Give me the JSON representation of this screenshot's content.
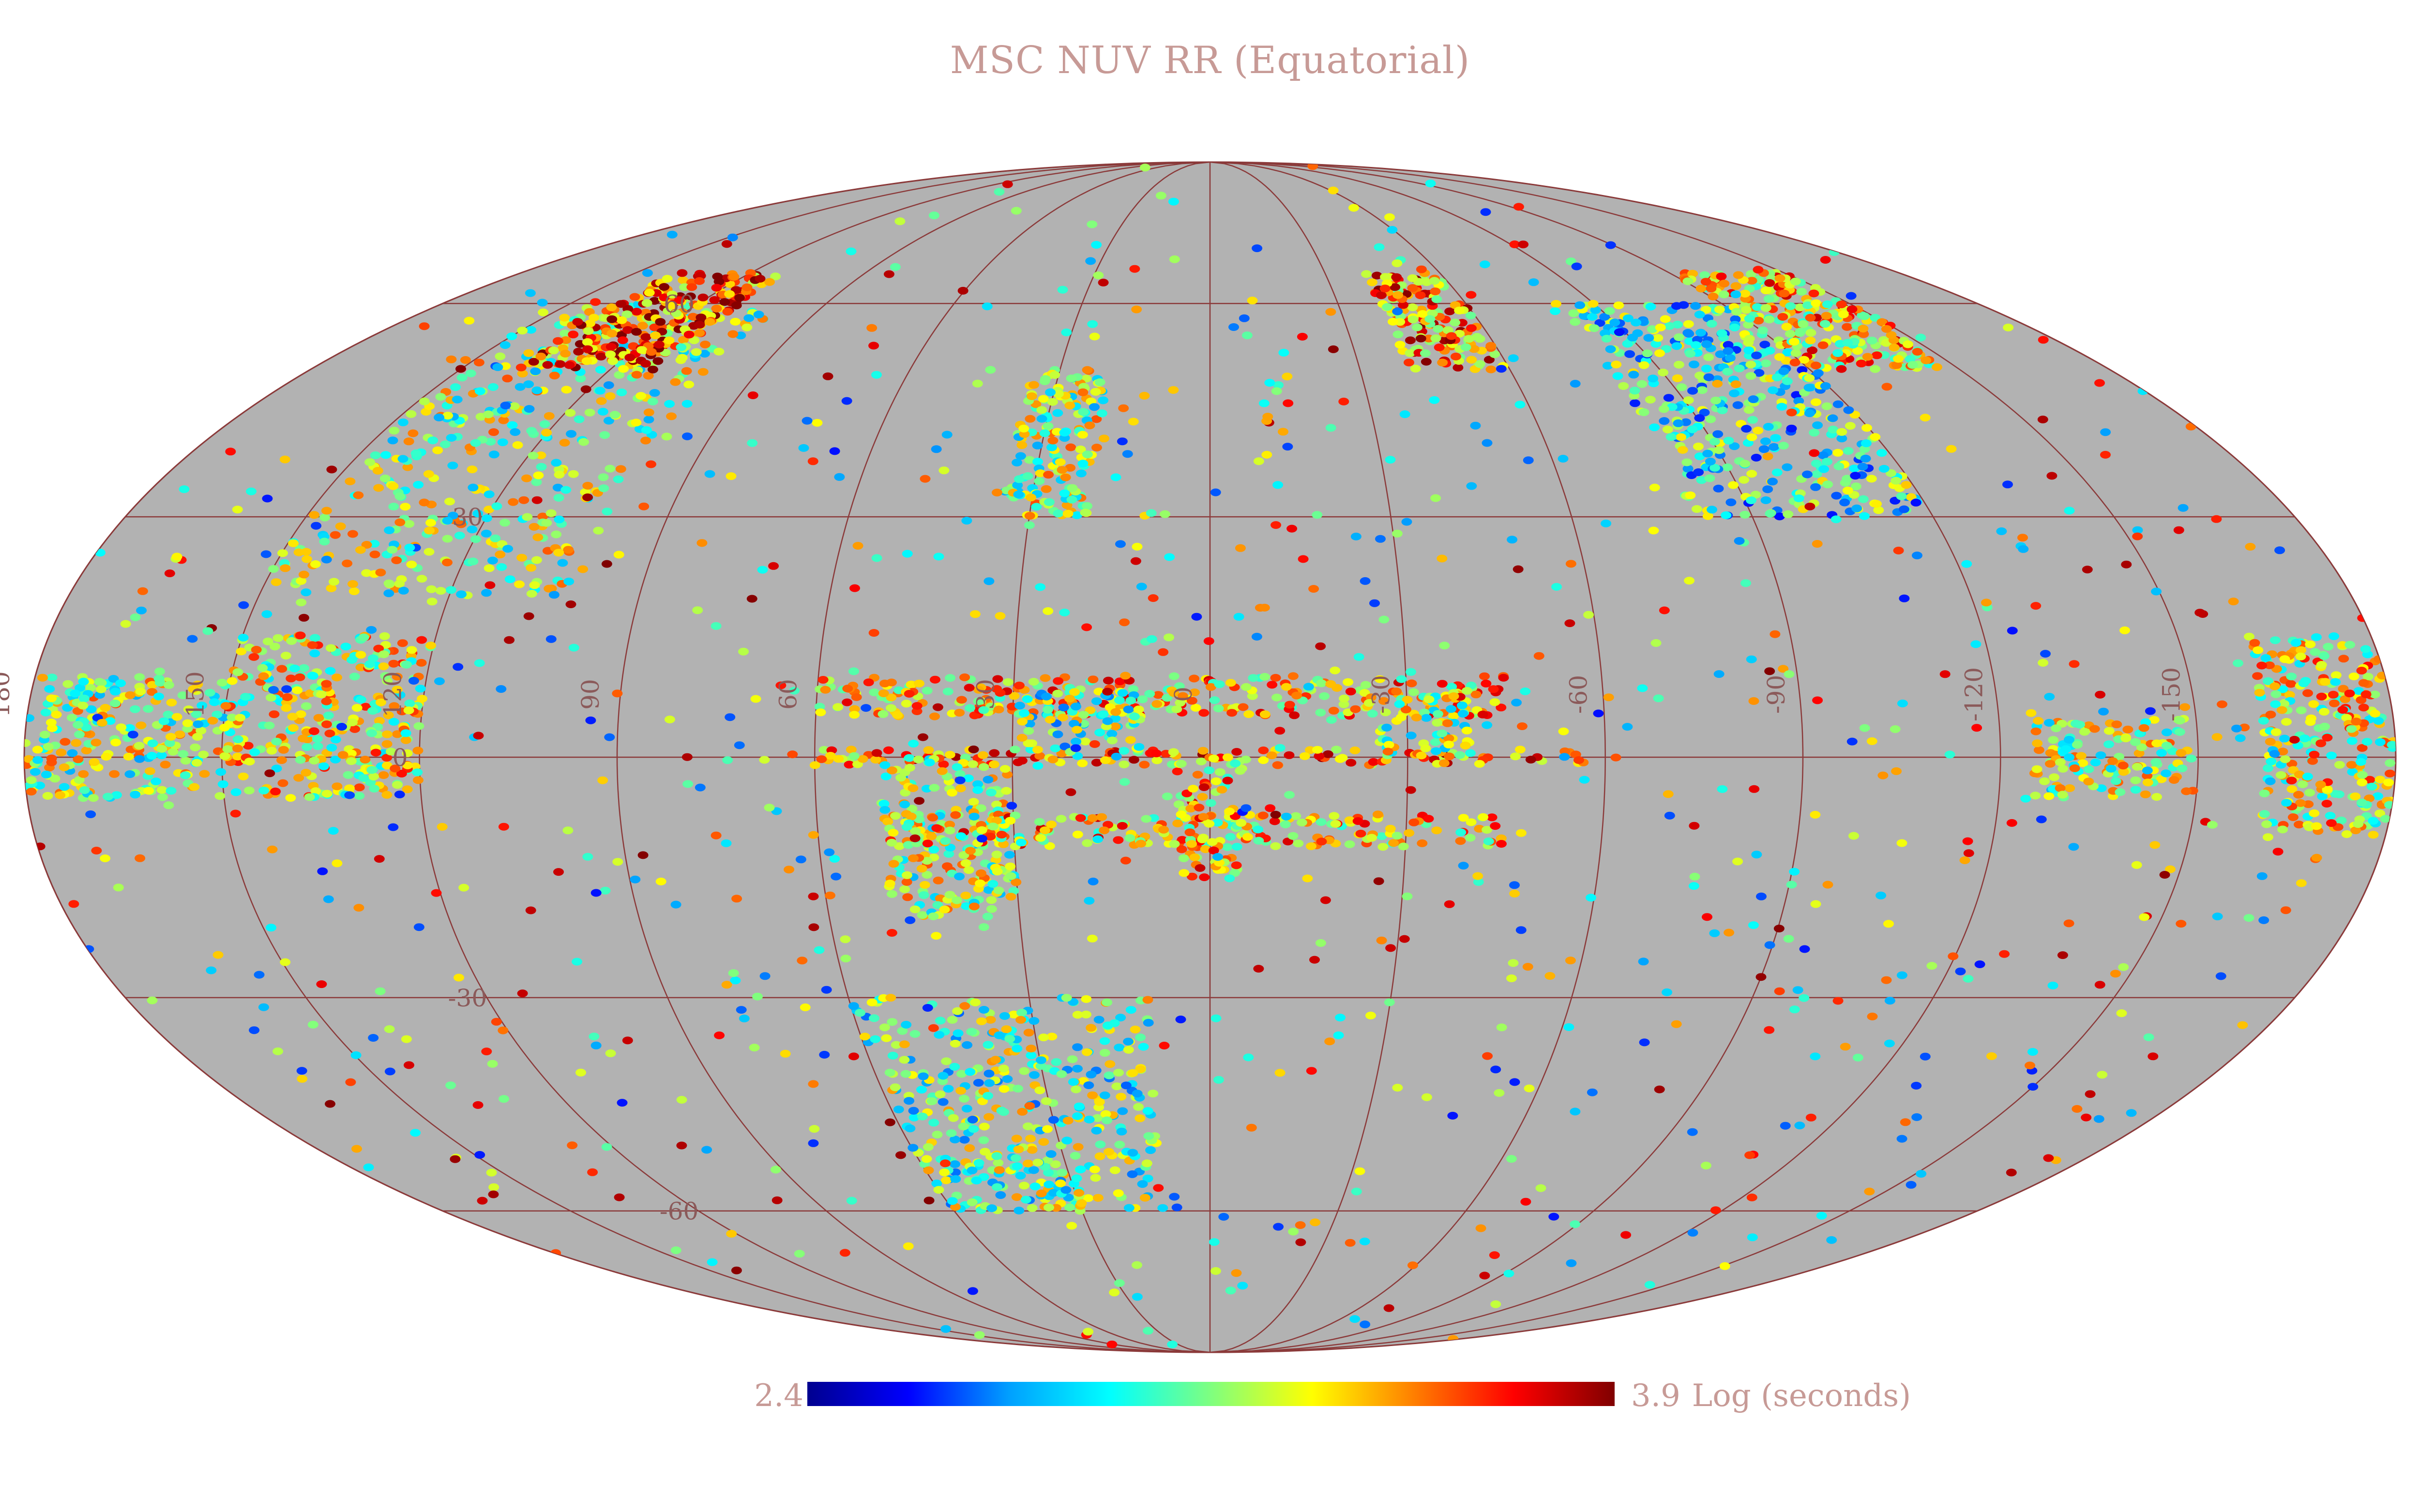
{
  "title": "MSC NUV RR (Equatorial)",
  "colorbar": {
    "min_label": "2.4",
    "max_label": "3.9",
    "unit_label": "Log (seconds)",
    "colors": [
      "#00008f",
      "#0000ff",
      "#00a0ff",
      "#00ffff",
      "#7fff7f",
      "#ffff00",
      "#ff8000",
      "#ff0000",
      "#800000"
    ]
  },
  "map": {
    "projection": "Mollweide",
    "background": "#b2b2b2",
    "grid_color": "#8b3a3a",
    "label_color": "#8b5a5a",
    "lon_labels": [
      "180",
      "150",
      "120",
      "90",
      "60",
      "30",
      "0",
      "-30",
      "-60",
      "-90",
      "-120",
      "-150"
    ],
    "lat_labels": [
      "60",
      "30",
      "0",
      "-30",
      "-60"
    ]
  },
  "chart_data": {
    "type": "heatmap",
    "title": "MSC NUV RR (Equatorial)",
    "projection": "Mollweide",
    "coordinate_system": "Equatorial",
    "lon_ticks": [
      180,
      150,
      120,
      90,
      60,
      30,
      0,
      -30,
      -60,
      -90,
      -120,
      -150
    ],
    "lat_ticks": [
      60,
      30,
      0,
      -30,
      -60
    ],
    "colorbar_range": [
      2.4,
      3.9
    ],
    "colorbar_label": "Log (seconds)",
    "regions": [
      {
        "lon_range": [
          150,
          180
        ],
        "lat_range": [
          -5,
          10
        ],
        "value": 3.2
      },
      {
        "lon_range": [
          120,
          150
        ],
        "lat_range": [
          -5,
          15
        ],
        "value": 3.3
      },
      {
        "lon_range": [
          100,
          150
        ],
        "lat_range": [
          20,
          60
        ],
        "value": 3.2
      },
      {
        "lon_range": [
          110,
          140
        ],
        "lat_range": [
          50,
          65
        ],
        "value": 3.6
      },
      {
        "lon_range": [
          -60,
          60
        ],
        "lat_range": [
          -1,
          1
        ],
        "value": 3.5
      },
      {
        "lon_range": [
          30,
          50
        ],
        "lat_range": [
          -20,
          0
        ],
        "value": 3.2
      },
      {
        "lon_range": [
          -5,
          5
        ],
        "lat_range": [
          -15,
          0
        ],
        "value": 3.4
      },
      {
        "lon_range": [
          -45,
          60
        ],
        "lat_range": [
          5,
          10
        ],
        "value": 3.4
      },
      {
        "lon_range": [
          -45,
          50
        ],
        "lat_range": [
          -11,
          -7
        ],
        "value": 3.4
      },
      {
        "lon_range": [
          -40,
          -25
        ],
        "lat_range": [
          0,
          8
        ],
        "value": 3.2
      },
      {
        "lon_range": [
          10,
          30
        ],
        "lat_range": [
          0,
          8
        ],
        "value": 3.1
      },
      {
        "lon_range": [
          20,
          35
        ],
        "lat_range": [
          30,
          50
        ],
        "value": 3.2
      },
      {
        "lon_range": [
          10,
          60
        ],
        "lat_range": [
          -60,
          -30
        ],
        "value": 3.1
      },
      {
        "lon_range": [
          -120,
          -80
        ],
        "lat_range": [
          30,
          60
        ],
        "value": 3.0
      },
      {
        "lon_range": [
          -150,
          -125
        ],
        "lat_range": [
          -5,
          5
        ],
        "value": 3.2
      },
      {
        "lon_range": [
          -180,
          -160
        ],
        "lat_range": [
          -10,
          15
        ],
        "value": 3.3
      },
      {
        "lon_range": [
          -150,
          -120
        ],
        "lat_range": [
          50,
          65
        ],
        "value": 3.4
      },
      {
        "lon_range": [
          -60,
          -40
        ],
        "lat_range": [
          50,
          65
        ],
        "value": 3.5
      }
    ]
  }
}
